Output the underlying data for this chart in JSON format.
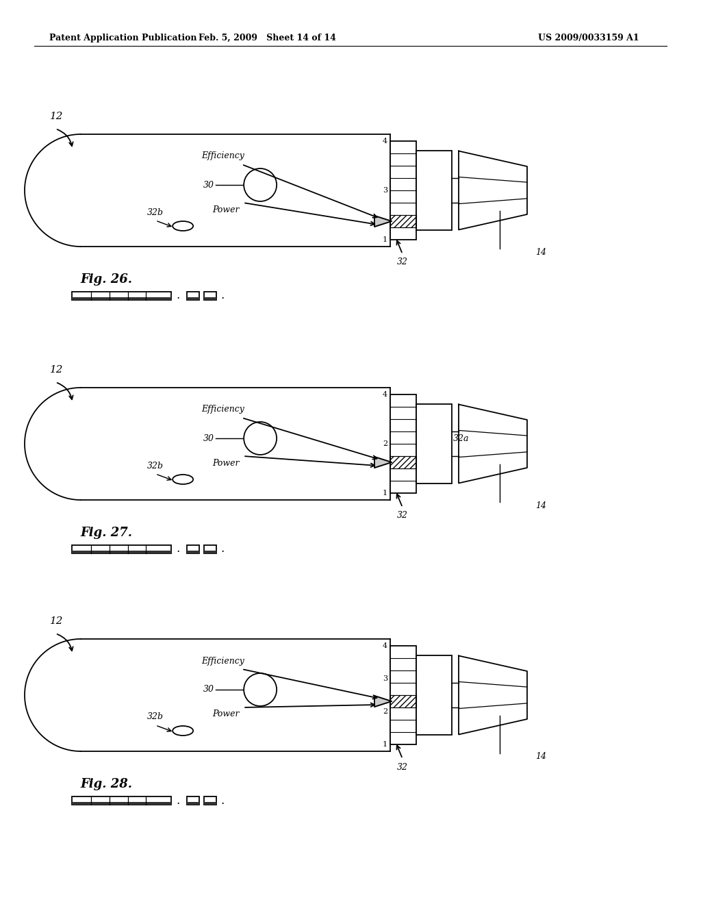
{
  "header_left": "Patent Application Publication",
  "header_mid": "Feb. 5, 2009   Sheet 14 of 14",
  "header_right": "US 2009/0033159 A1",
  "diagrams": [
    {
      "fig_label": "Fig. 26.",
      "hatched_segment": 2,
      "label_32a": false,
      "visible_nums": [
        "4",
        "3",
        "1"
      ],
      "num_segs": 8
    },
    {
      "fig_label": "Fig. 27.",
      "hatched_segment": 3,
      "label_32a": true,
      "visible_nums": [
        "4",
        "2",
        "1"
      ],
      "num_segs": 8
    },
    {
      "fig_label": "Fig. 28.",
      "hatched_segment": 4,
      "visible_nums": [
        "4",
        "3",
        "2",
        "1"
      ],
      "label_32a": false,
      "num_segs": 8
    }
  ],
  "line_color": "#000000",
  "bg_color": "#ffffff"
}
